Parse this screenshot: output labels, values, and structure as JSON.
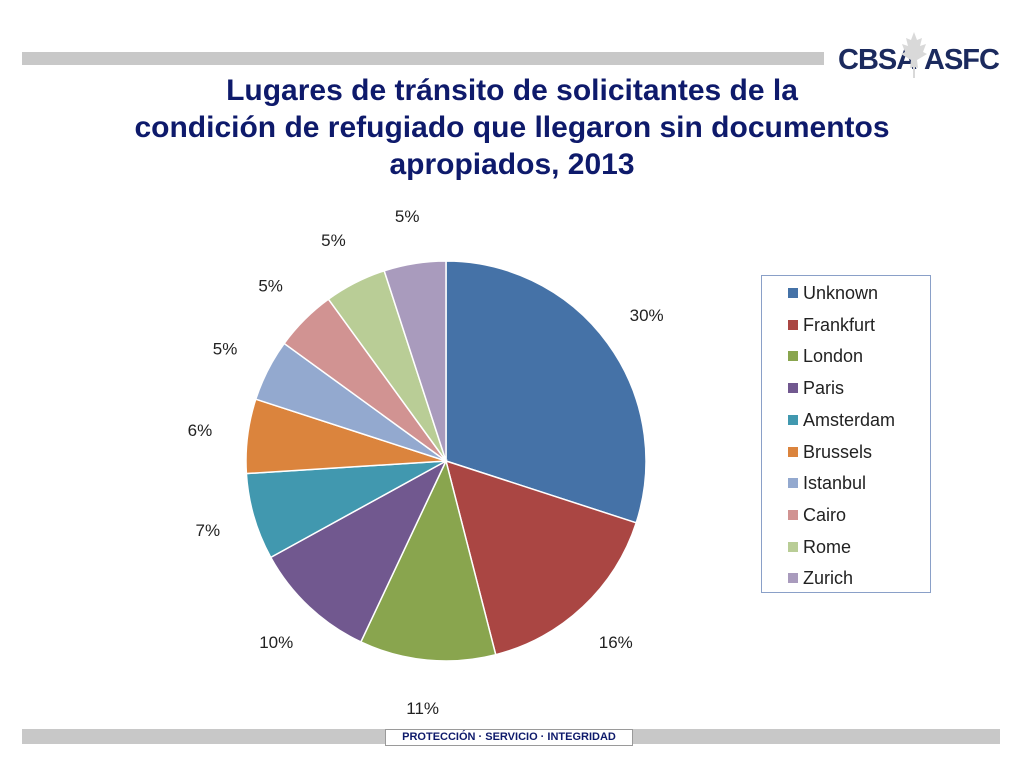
{
  "header": {
    "logo_left": "CBSA",
    "logo_right": "ASFC",
    "title_lines": [
      "Lugares de tránsito de solicitantes de la",
      "condición de refugiado que llegaron sin documentos",
      "apropiados, 2013"
    ]
  },
  "footer": {
    "tagline": "PROTECCIÓN · SERVICIO · INTEGRIDAD"
  },
  "chart_data": {
    "type": "pie",
    "title": "Lugares de tránsito de solicitantes de la condición de refugiado que llegaron sin documentos apropiados, 2013",
    "legend_position": "right",
    "slices": [
      {
        "name": "Unknown",
        "value": 30,
        "label": "30%",
        "color": "#4572a7"
      },
      {
        "name": "Frankfurt",
        "value": 16,
        "label": "16%",
        "color": "#aa4643"
      },
      {
        "name": "London",
        "value": 11,
        "label": "11%",
        "color": "#89a54e"
      },
      {
        "name": "Paris",
        "value": 10,
        "label": "10%",
        "color": "#71588f"
      },
      {
        "name": "Amsterdam",
        "value": 7,
        "label": "7%",
        "color": "#4198af"
      },
      {
        "name": "Brussels",
        "value": 6,
        "label": "6%",
        "color": "#db843d"
      },
      {
        "name": "Istanbul",
        "value": 5,
        "label": "5%",
        "color": "#93a9cf"
      },
      {
        "name": "Cairo",
        "value": 5,
        "label": "5%",
        "color": "#d19392"
      },
      {
        "name": "Rome",
        "value": 5,
        "label": "5%",
        "color": "#b9cd96"
      },
      {
        "name": "Zurich",
        "value": 5,
        "label": "5%",
        "color": "#a99bbd"
      }
    ]
  }
}
